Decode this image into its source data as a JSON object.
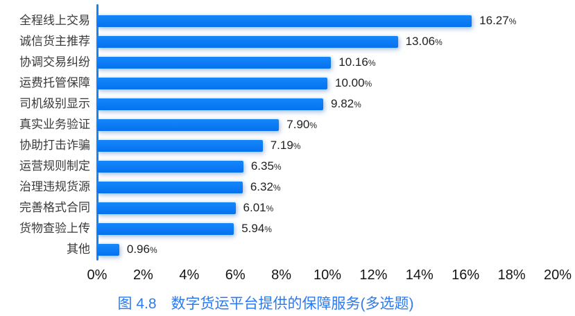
{
  "chart_data": {
    "type": "bar",
    "orientation": "horizontal",
    "title": "图 4.8　数字货运平台提供的保障服务(多选题)",
    "categories": [
      "全程线上交易",
      "诚信货主推荐",
      "协调交易纠纷",
      "运费托管保障",
      "司机级别显示",
      "真实业务验证",
      "协助打击诈骗",
      "运营规则制定",
      "治理违规货源",
      "完善格式合同",
      "货物查验上传",
      "其他"
    ],
    "values": [
      16.27,
      13.06,
      10.16,
      10.0,
      9.82,
      7.9,
      7.19,
      6.35,
      6.32,
      6.01,
      5.94,
      0.96
    ],
    "value_labels": [
      "16.27",
      "13.06",
      "10.16",
      "10.00",
      "9.82",
      "7.90",
      "7.19",
      "6.35",
      "6.32",
      "6.01",
      "5.94",
      "0.96"
    ],
    "unit": "%",
    "tick_labels": [
      "0%",
      "2%",
      "4%",
      "6%",
      "8%",
      "10%",
      "12%",
      "14%",
      "16%",
      "18%",
      "20%"
    ],
    "xlim": [
      0,
      20
    ],
    "xlabel": "",
    "ylabel": "",
    "grid": false,
    "legend": false,
    "data_labels_position": "end-of-bar"
  },
  "colors": {
    "bar_top": "#1587fa",
    "bar_bottom": "#0571ef",
    "axis_line": "#1583f5",
    "title_text": "#2b7af0",
    "category_text": "#3a3a3a",
    "value_text": "#1f1f1f",
    "tick_text": "#141414",
    "background": "#ffffff"
  }
}
